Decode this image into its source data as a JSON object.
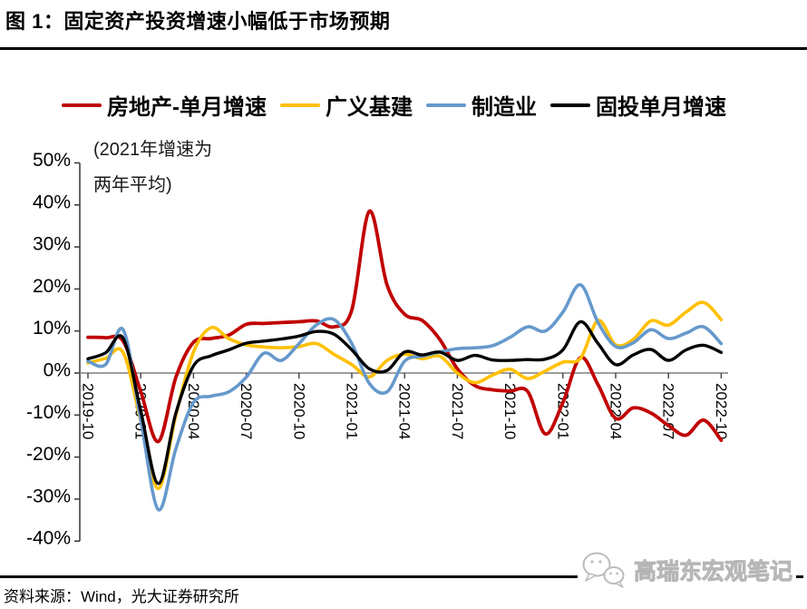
{
  "header": {
    "title": "图 1：固定资产投资增速小幅低于市场预期"
  },
  "legend": {
    "items": [
      {
        "label": "房地产-单月增速",
        "color": "#C00000"
      },
      {
        "label": "广义基建",
        "color": "#FFC000"
      },
      {
        "label": "制造业",
        "color": "#6699CC"
      },
      {
        "label": "固投单月增速",
        "color": "#000000"
      }
    ]
  },
  "chart": {
    "annotation_line1": "(2021年增速为",
    "annotation_line2": "两年平均)"
  },
  "footer": {
    "source": "资料来源：Wind，光大证券研究所",
    "watermark": "高瑞东宏观笔记"
  },
  "chart_data": {
    "type": "line",
    "title": "固定资产投资增速小幅低于市场预期",
    "annotation": "(2021年增速为两年平均)",
    "ylabel": "",
    "xlabel": "",
    "ylim": [
      -40,
      50
    ],
    "y_tick_step": 10,
    "y_tick_suffix": "%",
    "x_tick_step": 3,
    "grid": false,
    "zero_line": true,
    "legend_position": "top",
    "x": [
      "2019-10",
      "2019-11",
      "2019-12",
      "2020-01",
      "2020-02",
      "2020-03",
      "2020-04",
      "2020-05",
      "2020-06",
      "2020-07",
      "2020-08",
      "2020-09",
      "2020-10",
      "2020-11",
      "2020-12",
      "2021-01",
      "2021-02",
      "2021-03",
      "2021-04",
      "2021-05",
      "2021-06",
      "2021-07",
      "2021-08",
      "2021-09",
      "2021-10",
      "2021-11",
      "2021-12",
      "2022-01",
      "2022-02",
      "2022-03",
      "2022-04",
      "2022-05",
      "2022-06",
      "2022-07",
      "2022-08",
      "2022-09",
      "2022-10"
    ],
    "series": [
      {
        "name": "房地产-单月增速",
        "key": "real-estate-monthly",
        "color": "#C00000",
        "width": 3.8,
        "values": [
          8.5,
          8.4,
          7.6,
          -4.4,
          -16.3,
          -1.0,
          7.3,
          8.2,
          9.0,
          11.6,
          11.8,
          12.0,
          12.2,
          12.4,
          11.0,
          15.0,
          38.5,
          21.0,
          14.0,
          12.5,
          8.0,
          1.0,
          -3.0,
          -4.0,
          -4.3,
          -4.4,
          -14.5,
          -7.0,
          3.7,
          -2.8,
          -10.8,
          -8.3,
          -9.5,
          -12.5,
          -14.8,
          -11.2,
          -16.0
        ]
      },
      {
        "name": "广义基建",
        "key": "broad-infrastructure",
        "color": "#FFC000",
        "width": 3.6,
        "values": [
          2.4,
          3.5,
          4.9,
          -11.3,
          -27.5,
          -10.0,
          5.0,
          10.8,
          8.2,
          6.7,
          6.2,
          6.0,
          6.3,
          7.0,
          4.4,
          2.0,
          -0.9,
          3.0,
          4.5,
          3.4,
          4.0,
          0.0,
          -2.3,
          -0.5,
          0.9,
          -1.3,
          0.5,
          2.6,
          3.5,
          12.5,
          6.7,
          8.0,
          12.4,
          11.4,
          14.5,
          16.8,
          12.7
        ]
      },
      {
        "name": "制造业",
        "key": "manufacturing",
        "color": "#6699CC",
        "width": 3.6,
        "values": [
          2.8,
          2.0,
          10.3,
          -11.1,
          -32.5,
          -18.0,
          -7.0,
          -5.5,
          -4.5,
          -1.0,
          4.7,
          3.0,
          7.0,
          11.5,
          12.7,
          7.0,
          -2.5,
          -4.5,
          2.8,
          4.0,
          5.0,
          5.8,
          6.0,
          6.5,
          8.5,
          11.0,
          10.0,
          14.5,
          21.0,
          12.0,
          6.3,
          7.2,
          10.3,
          8.2,
          9.5,
          11.0,
          7.0
        ]
      },
      {
        "name": "固投单月增速",
        "key": "fai-monthly",
        "color": "#000000",
        "width": 3.4,
        "values": [
          3.4,
          4.8,
          8.3,
          -9.0,
          -26.3,
          -9.5,
          1.7,
          4.1,
          5.5,
          7.1,
          7.6,
          8.1,
          8.8,
          9.9,
          9.2,
          5.5,
          1.0,
          0.6,
          5.0,
          4.3,
          5.0,
          3.0,
          4.2,
          3.1,
          3.0,
          3.2,
          3.3,
          5.5,
          12.2,
          7.0,
          2.0,
          4.3,
          5.6,
          3.0,
          5.5,
          6.6,
          4.9
        ]
      }
    ]
  }
}
